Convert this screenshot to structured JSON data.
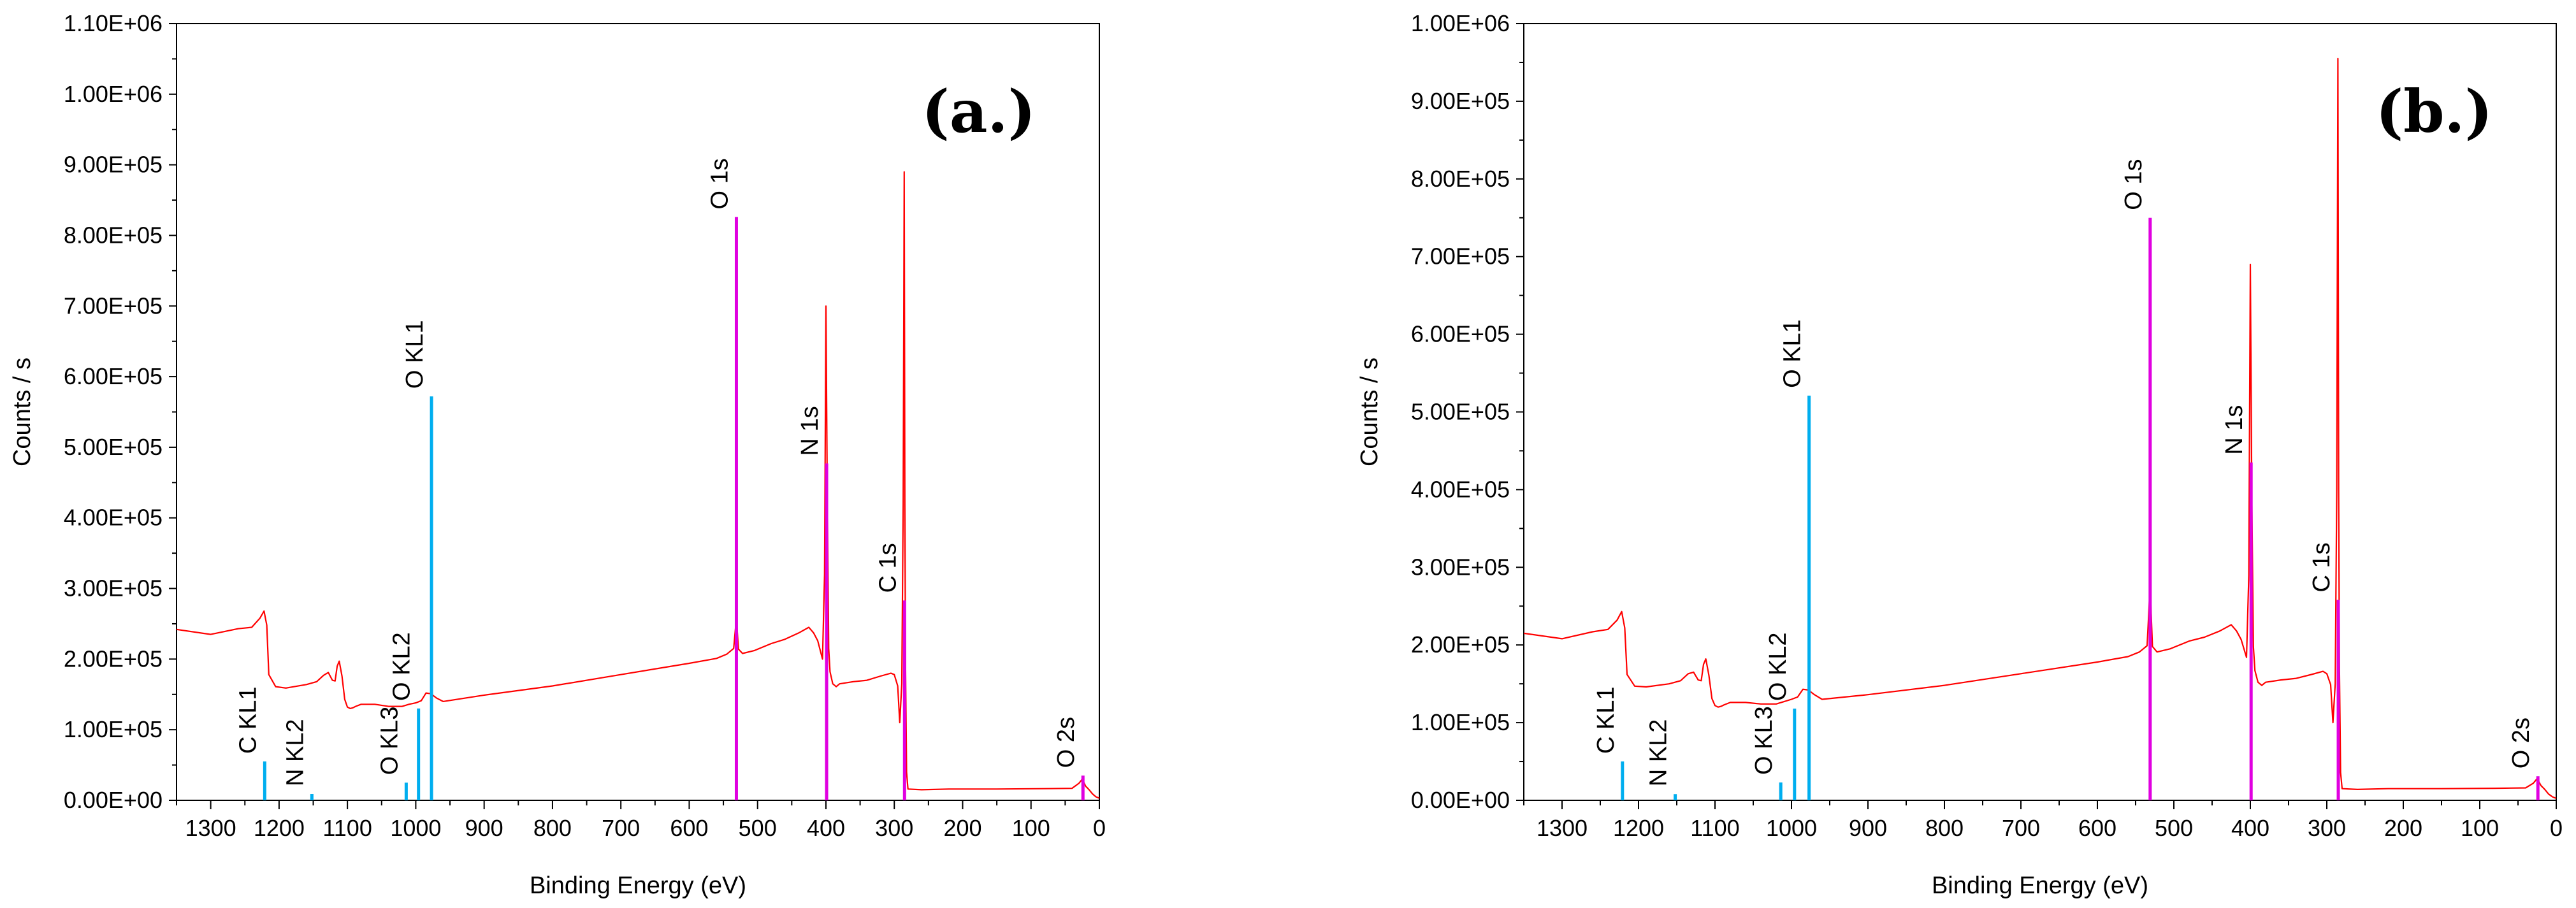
{
  "chart_data": [
    {
      "type": "line",
      "panel_label": "(a.)",
      "xlabel": "Binding Energy (eV)",
      "ylabel": "Counts / s",
      "xlim": [
        1350,
        0
      ],
      "ylim": [
        0,
        1100000
      ],
      "xticks": [
        1300,
        1200,
        1100,
        1000,
        900,
        800,
        700,
        600,
        500,
        400,
        300,
        200,
        100,
        0
      ],
      "xtick_labels": [
        "1300",
        "1200",
        "1100",
        "1000",
        "900",
        "800",
        "700",
        "600",
        "500",
        "400",
        "300",
        "200",
        "100",
        "0"
      ],
      "yticks": [
        0,
        100000,
        200000,
        300000,
        400000,
        500000,
        600000,
        700000,
        800000,
        900000,
        1000000,
        1100000
      ],
      "ytick_labels": [
        "0.00E+00",
        "1.00E+05",
        "2.00E+05",
        "3.00E+05",
        "4.00E+05",
        "5.00E+05",
        "6.00E+05",
        "7.00E+05",
        "8.00E+05",
        "9.00E+05",
        "1.00E+06",
        "1.10E+06"
      ],
      "spectrum": {
        "color": "#ff0000",
        "x": [
          1350,
          1300,
          1260,
          1240,
          1228,
          1222,
          1218,
          1215,
          1205,
          1190,
          1160,
          1145,
          1135,
          1128,
          1122,
          1118,
          1115,
          1112,
          1108,
          1104,
          1100,
          1096,
          1092,
          1088,
          1080,
          1060,
          1040,
          1020,
          1010,
          1000,
          992,
          985,
          978,
          970,
          960,
          900,
          800,
          700,
          600,
          560,
          545,
          535,
          531,
          528,
          522,
          505,
          480,
          460,
          440,
          425,
          418,
          412,
          405,
          402,
          400,
          398,
          396,
          394,
          390,
          385,
          380,
          360,
          340,
          320,
          305,
          300,
          295,
          292,
          289,
          287,
          285.5,
          284.5,
          283.5,
          282,
          280,
          260,
          220,
          150,
          80,
          40,
          30,
          25,
          20,
          15,
          10,
          5,
          0
        ],
        "y": [
          242000,
          235000,
          243000,
          245000,
          258000,
          268000,
          248000,
          178000,
          161000,
          159000,
          164000,
          168000,
          177000,
          181000,
          170000,
          169000,
          190000,
          197000,
          176000,
          143000,
          132000,
          130000,
          131000,
          133000,
          136000,
          136000,
          133000,
          133000,
          136000,
          138000,
          141000,
          152000,
          151000,
          145000,
          140000,
          149000,
          162000,
          178000,
          194000,
          201000,
          207000,
          215000,
          258000,
          214000,
          208000,
          212000,
          222000,
          228000,
          237000,
          245000,
          237000,
          226000,
          200000,
          320000,
          700000,
          430000,
          215000,
          182000,
          165000,
          161000,
          165000,
          168000,
          170000,
          176000,
          180000,
          178000,
          162000,
          110000,
          165000,
          420000,
          890000,
          420000,
          185000,
          40000,
          16000,
          15000,
          16000,
          16000,
          16500,
          17000,
          24000,
          30000,
          20000,
          15000,
          9000,
          5000,
          3000
        ]
      },
      "reference_lines": [
        {
          "x": 1221,
          "y": 55000,
          "color": "#00aeef",
          "label": "C KL1"
        },
        {
          "x": 1152,
          "y": 9000,
          "color": "#00aeef",
          "label": "N KL2"
        },
        {
          "x": 1014,
          "y": 25000,
          "color": "#00aeef",
          "label": "O KL3"
        },
        {
          "x": 996,
          "y": 130000,
          "color": "#00aeef",
          "label": "O KL2"
        },
        {
          "x": 977,
          "y": 572000,
          "color": "#00aeef",
          "label": "O KL1"
        },
        {
          "x": 531,
          "y": 826000,
          "color": "#e000e0",
          "label": "O 1s"
        },
        {
          "x": 399,
          "y": 477000,
          "color": "#e000e0",
          "label": "N 1s"
        },
        {
          "x": 285,
          "y": 283000,
          "color": "#e000e0",
          "label": "C 1s"
        },
        {
          "x": 24,
          "y": 35000,
          "color": "#e000e0",
          "label": "O 2s"
        }
      ]
    },
    {
      "type": "line",
      "panel_label": "(b.)",
      "xlabel": "Binding Energy (eV)",
      "ylabel": "Counts / s",
      "xlim": [
        1350,
        0
      ],
      "ylim": [
        0,
        1000000
      ],
      "xticks": [
        1300,
        1200,
        1100,
        1000,
        900,
        800,
        700,
        600,
        500,
        400,
        300,
        200,
        100,
        0
      ],
      "xtick_labels": [
        "1300",
        "1200",
        "1100",
        "1000",
        "900",
        "800",
        "700",
        "600",
        "500",
        "400",
        "300",
        "200",
        "100",
        "0"
      ],
      "yticks": [
        0,
        100000,
        200000,
        300000,
        400000,
        500000,
        600000,
        700000,
        800000,
        900000,
        1000000
      ],
      "ytick_labels": [
        "0.00E+00",
        "1.00E+05",
        "2.00E+05",
        "3.00E+05",
        "4.00E+05",
        "5.00E+05",
        "6.00E+05",
        "7.00E+05",
        "8.00E+05",
        "9.00E+05",
        "1.00E+06"
      ],
      "spectrum": {
        "color": "#ff0000",
        "x": [
          1350,
          1300,
          1260,
          1240,
          1228,
          1222,
          1218,
          1215,
          1205,
          1190,
          1160,
          1145,
          1135,
          1128,
          1122,
          1118,
          1115,
          1112,
          1108,
          1104,
          1100,
          1096,
          1092,
          1088,
          1080,
          1060,
          1040,
          1020,
          1010,
          1000,
          992,
          985,
          978,
          970,
          960,
          900,
          800,
          700,
          600,
          560,
          545,
          535,
          531,
          528,
          522,
          505,
          480,
          460,
          440,
          425,
          418,
          412,
          405,
          402,
          400,
          398,
          396,
          394,
          390,
          385,
          380,
          360,
          340,
          320,
          305,
          300,
          295,
          292,
          289,
          287,
          285.5,
          284.5,
          283.5,
          282,
          280,
          260,
          220,
          150,
          80,
          40,
          30,
          25,
          20,
          15,
          10,
          5,
          0
        ],
        "y": [
          215000,
          208000,
          217000,
          220000,
          232000,
          243000,
          222000,
          162000,
          147000,
          146000,
          150000,
          154000,
          163000,
          165000,
          155000,
          154000,
          175000,
          182000,
          161000,
          131000,
          122000,
          120000,
          121000,
          123000,
          126000,
          126000,
          124000,
          124000,
          127000,
          130000,
          133000,
          143000,
          142000,
          136000,
          130000,
          136000,
          148000,
          163000,
          178000,
          185000,
          191000,
          199000,
          276000,
          198000,
          191000,
          195000,
          205000,
          210000,
          218000,
          226000,
          218000,
          207000,
          184000,
          290000,
          690000,
          380000,
          198000,
          167000,
          152000,
          148000,
          152000,
          155000,
          157000,
          162000,
          166000,
          163000,
          149000,
          100000,
          150000,
          400000,
          955000,
          400000,
          170000,
          36000,
          15000,
          14000,
          15000,
          15000,
          15500,
          16000,
          22000,
          28000,
          19000,
          14000,
          8000,
          4500,
          2500
        ]
      },
      "reference_lines": [
        {
          "x": 1221,
          "y": 50000,
          "color": "#00aeef",
          "label": "C KL1"
        },
        {
          "x": 1152,
          "y": 8000,
          "color": "#00aeef",
          "label": "N KL2"
        },
        {
          "x": 1014,
          "y": 23000,
          "color": "#00aeef",
          "label": "O KL3"
        },
        {
          "x": 996,
          "y": 118000,
          "color": "#00aeef",
          "label": "O KL2"
        },
        {
          "x": 977,
          "y": 521000,
          "color": "#00aeef",
          "label": "O KL1"
        },
        {
          "x": 531,
          "y": 750000,
          "color": "#e000e0",
          "label": "O 1s"
        },
        {
          "x": 399,
          "y": 435000,
          "color": "#e000e0",
          "label": "N 1s"
        },
        {
          "x": 285,
          "y": 258000,
          "color": "#e000e0",
          "label": "C 1s"
        },
        {
          "x": 24,
          "y": 31000,
          "color": "#e000e0",
          "label": "O 2s"
        }
      ]
    }
  ]
}
